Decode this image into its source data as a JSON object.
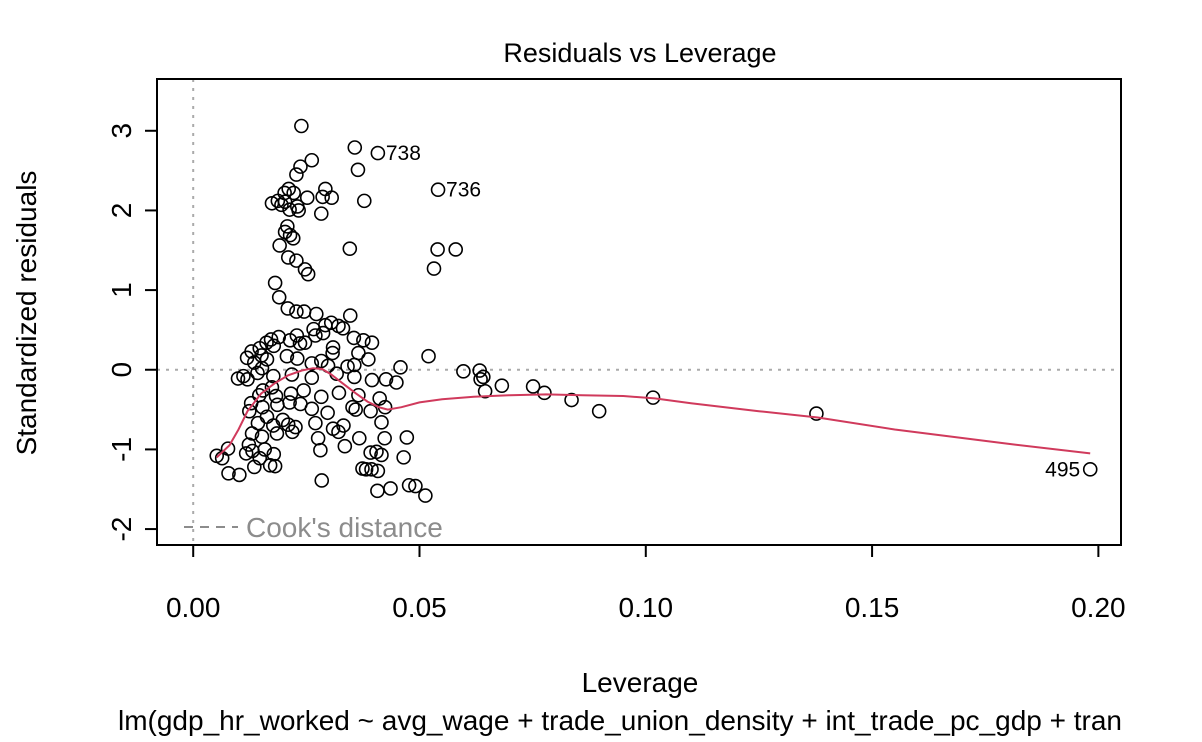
{
  "chart_data": {
    "type": "scatter",
    "title": "Residuals vs Leverage",
    "xlabel": "Leverage",
    "ylabel": "Standardized residuals",
    "subtitle": "lm(gdp_hr_worked ~ avg_wage + trade_union_density + int_trade_pc_gdp + tran",
    "xlim": [
      -0.008,
      0.205
    ],
    "ylim": [
      -2.2,
      3.65
    ],
    "x_ticks": [
      {
        "value": 0.0,
        "label": "0.00"
      },
      {
        "value": 0.05,
        "label": "0.05"
      },
      {
        "value": 0.1,
        "label": "0.10"
      },
      {
        "value": 0.15,
        "label": "0.15"
      },
      {
        "value": 0.2,
        "label": "0.20"
      }
    ],
    "y_ticks": [
      {
        "value": -2,
        "label": "-2"
      },
      {
        "value": -1,
        "label": "-1"
      },
      {
        "value": 0,
        "label": "0"
      },
      {
        "value": 1,
        "label": "1"
      },
      {
        "value": 2,
        "label": "2"
      },
      {
        "value": 3,
        "label": "3"
      }
    ],
    "legend": {
      "label": "Cook's distance",
      "position": "bottom-left"
    },
    "reference_lines": {
      "x": 0,
      "y": 0
    },
    "colors": {
      "points": "#000000",
      "smooth": "#d03a5c",
      "reference": "#aaaaaa",
      "legend": "#8c8c8c"
    },
    "labeled_points": [
      {
        "label": "738",
        "x": 0.0408,
        "y": 2.72,
        "label_side": "right"
      },
      {
        "label": "736",
        "x": 0.0541,
        "y": 2.26,
        "label_side": "right"
      },
      {
        "label": "495",
        "x": 0.1982,
        "y": -1.25,
        "label_side": "left"
      }
    ],
    "points": [
      [
        0.0239,
        3.06
      ],
      [
        0.0357,
        2.79
      ],
      [
        0.0262,
        2.63
      ],
      [
        0.0364,
        2.51
      ],
      [
        0.0237,
        2.55
      ],
      [
        0.0228,
        2.45
      ],
      [
        0.0292,
        2.27
      ],
      [
        0.0211,
        2.27
      ],
      [
        0.0202,
        2.22
      ],
      [
        0.0222,
        2.22
      ],
      [
        0.0203,
        2.11
      ],
      [
        0.0252,
        2.16
      ],
      [
        0.0286,
        2.17
      ],
      [
        0.0306,
        2.16
      ],
      [
        0.0378,
        2.12
      ],
      [
        0.0174,
        2.09
      ],
      [
        0.0187,
        2.12
      ],
      [
        0.0195,
        2.07
      ],
      [
        0.023,
        2.05
      ],
      [
        0.0213,
        2.01
      ],
      [
        0.0233,
        2.0
      ],
      [
        0.0283,
        1.96
      ],
      [
        0.0208,
        1.8
      ],
      [
        0.0203,
        1.73
      ],
      [
        0.0214,
        1.69
      ],
      [
        0.0221,
        1.65
      ],
      [
        0.0191,
        1.56
      ],
      [
        0.0346,
        1.52
      ],
      [
        0.054,
        1.51
      ],
      [
        0.058,
        1.51
      ],
      [
        0.021,
        1.41
      ],
      [
        0.0228,
        1.37
      ],
      [
        0.0532,
        1.27
      ],
      [
        0.0247,
        1.26
      ],
      [
        0.0254,
        1.2
      ],
      [
        0.0181,
        1.09
      ],
      [
        0.019,
        0.91
      ],
      [
        0.0209,
        0.77
      ],
      [
        0.0228,
        0.73
      ],
      [
        0.0245,
        0.73
      ],
      [
        0.0272,
        0.7
      ],
      [
        0.0347,
        0.68
      ],
      [
        0.0305,
        0.59
      ],
      [
        0.0292,
        0.56
      ],
      [
        0.0321,
        0.55
      ],
      [
        0.0266,
        0.51
      ],
      [
        0.0331,
        0.52
      ],
      [
        0.0287,
        0.46
      ],
      [
        0.027,
        0.43
      ],
      [
        0.0229,
        0.43
      ],
      [
        0.0355,
        0.4
      ],
      [
        0.0376,
        0.37
      ],
      [
        0.0189,
        0.41
      ],
      [
        0.0172,
        0.38
      ],
      [
        0.0162,
        0.34
      ],
      [
        0.0178,
        0.3
      ],
      [
        0.0214,
        0.37
      ],
      [
        0.0236,
        0.33
      ],
      [
        0.0247,
        0.34
      ],
      [
        0.0309,
        0.28
      ],
      [
        0.0395,
        0.34
      ],
      [
        0.0365,
        0.21
      ],
      [
        0.0308,
        0.21
      ],
      [
        0.0147,
        0.27
      ],
      [
        0.0129,
        0.23
      ],
      [
        0.0151,
        0.18
      ],
      [
        0.0119,
        0.15
      ],
      [
        0.0135,
        0.09
      ],
      [
        0.0163,
        0.13
      ],
      [
        0.0207,
        0.17
      ],
      [
        0.023,
        0.14
      ],
      [
        0.0262,
        0.08
      ],
      [
        0.0283,
        0.11
      ],
      [
        0.0298,
        0.05
      ],
      [
        0.0341,
        0.04
      ],
      [
        0.0356,
        0.06
      ],
      [
        0.0387,
        0.13
      ],
      [
        0.052,
        0.17
      ],
      [
        0.0458,
        0.03
      ],
      [
        0.0152,
        0.02
      ],
      [
        0.0142,
        -0.04
      ],
      [
        0.0111,
        -0.08
      ],
      [
        0.0099,
        -0.11
      ],
      [
        0.012,
        -0.12
      ],
      [
        0.0177,
        -0.08
      ],
      [
        0.0218,
        -0.06
      ],
      [
        0.0262,
        -0.1
      ],
      [
        0.0317,
        -0.05
      ],
      [
        0.0356,
        -0.09
      ],
      [
        0.0395,
        -0.13
      ],
      [
        0.0426,
        -0.12
      ],
      [
        0.0449,
        -0.16
      ],
      [
        0.0597,
        -0.02
      ],
      [
        0.0633,
        -0.01
      ],
      [
        0.0641,
        -0.09
      ],
      [
        0.0635,
        -0.12
      ],
      [
        0.0682,
        -0.2
      ],
      [
        0.0751,
        -0.21
      ],
      [
        0.0776,
        -0.29
      ],
      [
        0.0645,
        -0.27
      ],
      [
        0.0154,
        -0.26
      ],
      [
        0.0174,
        -0.22
      ],
      [
        0.0146,
        -0.32
      ],
      [
        0.0183,
        -0.33
      ],
      [
        0.0216,
        -0.3
      ],
      [
        0.0244,
        -0.26
      ],
      [
        0.0283,
        -0.34
      ],
      [
        0.0322,
        -0.29
      ],
      [
        0.0365,
        -0.32
      ],
      [
        0.0412,
        -0.36
      ],
      [
        0.0836,
        -0.38
      ],
      [
        0.0897,
        -0.52
      ],
      [
        0.1016,
        -0.35
      ],
      [
        0.1377,
        -0.55
      ],
      [
        0.0128,
        -0.42
      ],
      [
        0.0153,
        -0.47
      ],
      [
        0.0186,
        -0.44
      ],
      [
        0.0213,
        -0.41
      ],
      [
        0.0237,
        -0.43
      ],
      [
        0.0262,
        -0.49
      ],
      [
        0.0297,
        -0.54
      ],
      [
        0.0352,
        -0.47
      ],
      [
        0.0359,
        -0.5
      ],
      [
        0.0392,
        -0.52
      ],
      [
        0.0424,
        -0.47
      ],
      [
        0.0124,
        -0.52
      ],
      [
        0.0163,
        -0.59
      ],
      [
        0.0198,
        -0.63
      ],
      [
        0.0143,
        -0.67
      ],
      [
        0.0177,
        -0.7
      ],
      [
        0.021,
        -0.69
      ],
      [
        0.0226,
        -0.72
      ],
      [
        0.027,
        -0.67
      ],
      [
        0.0309,
        -0.74
      ],
      [
        0.0332,
        -0.7
      ],
      [
        0.0416,
        -0.66
      ],
      [
        0.013,
        -0.8
      ],
      [
        0.0152,
        -0.84
      ],
      [
        0.0185,
        -0.8
      ],
      [
        0.0219,
        -0.78
      ],
      [
        0.0276,
        -0.86
      ],
      [
        0.0321,
        -0.78
      ],
      [
        0.0367,
        -0.86
      ],
      [
        0.0423,
        -0.86
      ],
      [
        0.0472,
        -0.85
      ],
      [
        0.0123,
        -0.94
      ],
      [
        0.0131,
        -1.02
      ],
      [
        0.0158,
        -1.0
      ],
      [
        0.0178,
        -1.06
      ],
      [
        0.0281,
        -1.01
      ],
      [
        0.0335,
        -0.96
      ],
      [
        0.0392,
        -1.04
      ],
      [
        0.0405,
        -1.03
      ],
      [
        0.0416,
        -1.07
      ],
      [
        0.0465,
        -1.1
      ],
      [
        0.0052,
        -1.08
      ],
      [
        0.0064,
        -1.11
      ],
      [
        0.0077,
        -0.99
      ],
      [
        0.0117,
        -1.05
      ],
      [
        0.0147,
        -1.11
      ],
      [
        0.017,
        -1.2
      ],
      [
        0.0181,
        -1.21
      ],
      [
        0.0078,
        -1.3
      ],
      [
        0.0102,
        -1.32
      ],
      [
        0.0135,
        -1.22
      ],
      [
        0.0374,
        -1.24
      ],
      [
        0.0382,
        -1.25
      ],
      [
        0.0394,
        -1.25
      ],
      [
        0.0408,
        -1.27
      ],
      [
        0.0284,
        -1.39
      ],
      [
        0.0407,
        -1.52
      ],
      [
        0.0436,
        -1.49
      ],
      [
        0.0477,
        -1.45
      ],
      [
        0.0491,
        -1.46
      ],
      [
        0.0513,
        -1.58
      ],
      [
        0.0408,
        2.72
      ],
      [
        0.0541,
        2.26
      ],
      [
        0.1982,
        -1.25
      ]
    ],
    "smooth": [
      [
        0.0052,
        -1.1
      ],
      [
        0.008,
        -0.95
      ],
      [
        0.01,
        -0.75
      ],
      [
        0.012,
        -0.52
      ],
      [
        0.015,
        -0.3
      ],
      [
        0.018,
        -0.17
      ],
      [
        0.021,
        -0.07
      ],
      [
        0.024,
        -0.01
      ],
      [
        0.0265,
        0.02
      ],
      [
        0.0285,
        0.01
      ],
      [
        0.0305,
        -0.06
      ],
      [
        0.033,
        -0.17
      ],
      [
        0.036,
        -0.3
      ],
      [
        0.0385,
        -0.4
      ],
      [
        0.041,
        -0.47
      ],
      [
        0.043,
        -0.5
      ],
      [
        0.046,
        -0.47
      ],
      [
        0.05,
        -0.41
      ],
      [
        0.055,
        -0.37
      ],
      [
        0.062,
        -0.34
      ],
      [
        0.07,
        -0.32
      ],
      [
        0.078,
        -0.31
      ],
      [
        0.086,
        -0.32
      ],
      [
        0.095,
        -0.33
      ],
      [
        0.102,
        -0.36
      ],
      [
        0.11,
        -0.42
      ],
      [
        0.125,
        -0.52
      ],
      [
        0.138,
        -0.6
      ],
      [
        0.155,
        -0.75
      ],
      [
        0.18,
        -0.93
      ],
      [
        0.1982,
        -1.05
      ]
    ]
  }
}
